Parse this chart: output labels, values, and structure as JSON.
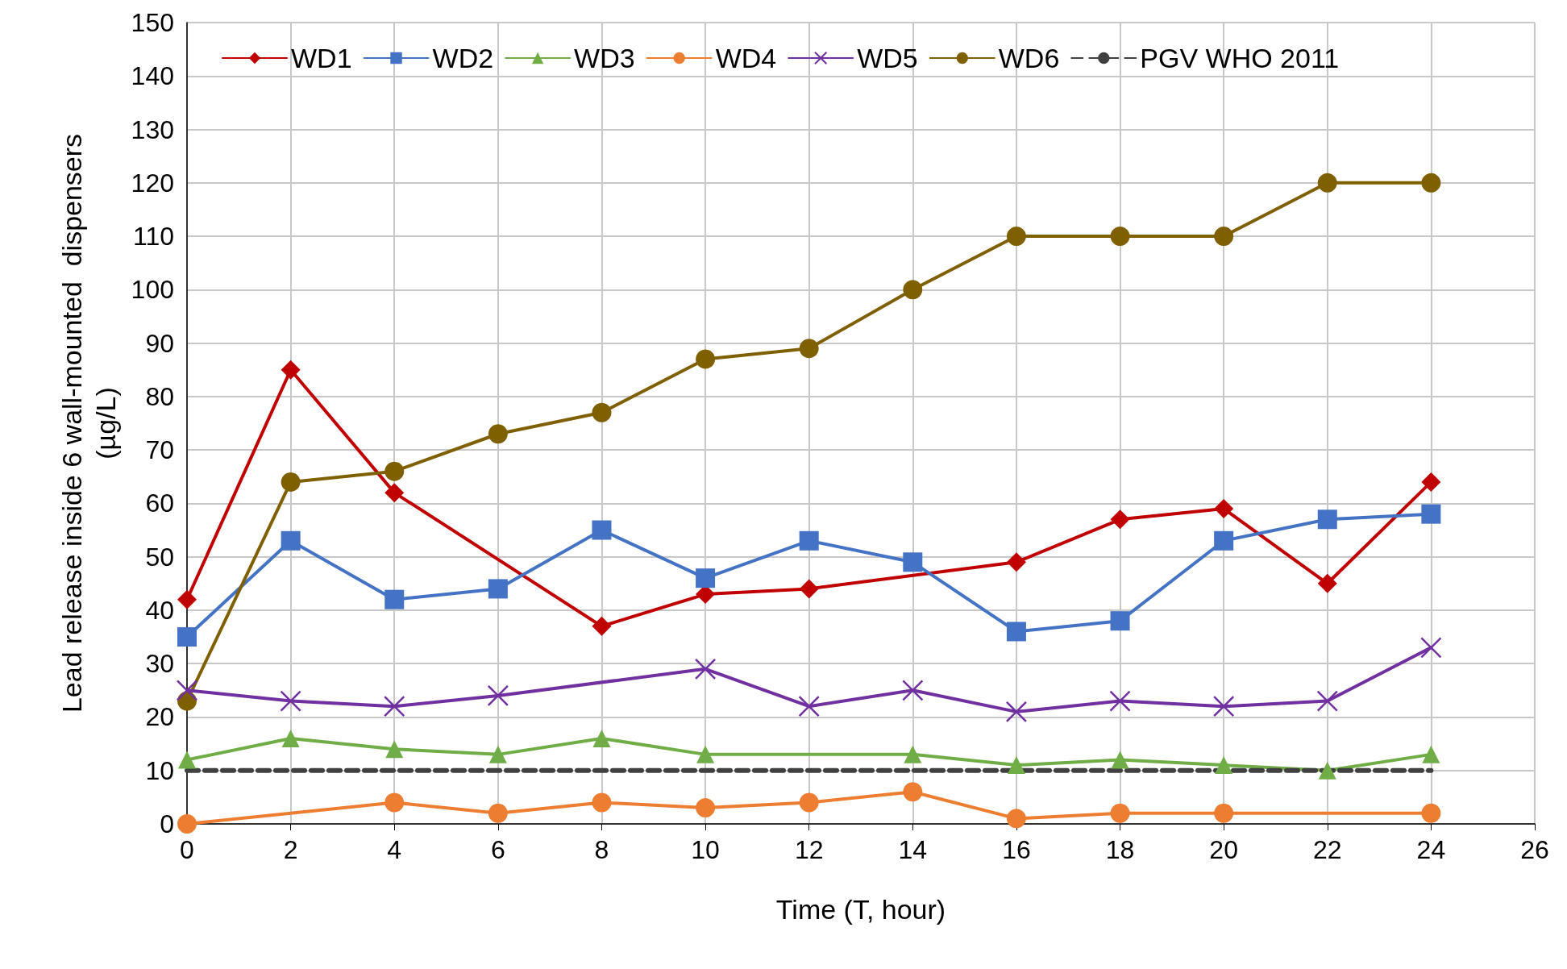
{
  "chart_data": {
    "type": "line",
    "xlabel": "Time (T, hour)",
    "ylabel": "Lead release inside 6 wall-mounted  dispensers\n(µg/L)",
    "xlim": [
      0,
      26
    ],
    "xticks": [
      0,
      2,
      4,
      6,
      8,
      10,
      12,
      14,
      16,
      18,
      20,
      22,
      24,
      26
    ],
    "ylim": [
      0,
      150
    ],
    "yticks": [
      0,
      10,
      20,
      30,
      40,
      50,
      60,
      70,
      80,
      90,
      100,
      110,
      120,
      130,
      140,
      150
    ],
    "grid": true,
    "legend": "top",
    "line_style": "solid",
    "series": [
      {
        "name": "WD1",
        "color": "#c00000",
        "marker": "diamond",
        "x": [
          0,
          2,
          4,
          8,
          10,
          12,
          16,
          18,
          20,
          22,
          24
        ],
        "values": [
          42,
          85,
          62,
          37,
          43,
          44,
          49,
          57,
          59,
          45,
          64
        ]
      },
      {
        "name": "WD2",
        "color": "#4472c4",
        "marker": "square",
        "x": [
          0,
          2,
          4,
          6,
          8,
          10,
          12,
          14,
          16,
          18,
          20,
          22,
          24
        ],
        "values": [
          35,
          53,
          42,
          44,
          55,
          46,
          53,
          49,
          36,
          38,
          53,
          57,
          58
        ]
      },
      {
        "name": "WD3",
        "color": "#70ad47",
        "marker": "triangle",
        "x": [
          0,
          2,
          4,
          6,
          8,
          10,
          14,
          16,
          18,
          20,
          22,
          24
        ],
        "values": [
          12,
          16,
          14,
          13,
          16,
          13,
          13,
          11,
          12,
          11,
          10,
          13
        ]
      },
      {
        "name": "WD4",
        "color": "#ed7d31",
        "marker": "circle",
        "x": [
          0,
          4,
          6,
          8,
          10,
          12,
          14,
          16,
          18,
          20,
          24
        ],
        "values": [
          0,
          4,
          2,
          4,
          3,
          4,
          6,
          1,
          2,
          2,
          2
        ]
      },
      {
        "name": "WD5",
        "color": "#7030a0",
        "marker": "cross",
        "x": [
          0,
          2,
          4,
          6,
          10,
          12,
          14,
          16,
          18,
          20,
          22,
          24
        ],
        "values": [
          25,
          23,
          22,
          24,
          29,
          22,
          25,
          21,
          23,
          22,
          23,
          33
        ]
      },
      {
        "name": "WD6",
        "color": "#7f6000",
        "marker": "circle",
        "x": [
          0,
          2,
          4,
          6,
          8,
          10,
          12,
          14,
          16,
          18,
          20,
          22,
          24
        ],
        "values": [
          23,
          64,
          66,
          73,
          77,
          87,
          89,
          100,
          110,
          110,
          110,
          120,
          120
        ]
      },
      {
        "name": "PGV WHO 2011",
        "color": "#404040",
        "marker": "none",
        "line_style": "dashed",
        "x": [
          0,
          24
        ],
        "values": [
          10,
          10
        ]
      }
    ]
  }
}
